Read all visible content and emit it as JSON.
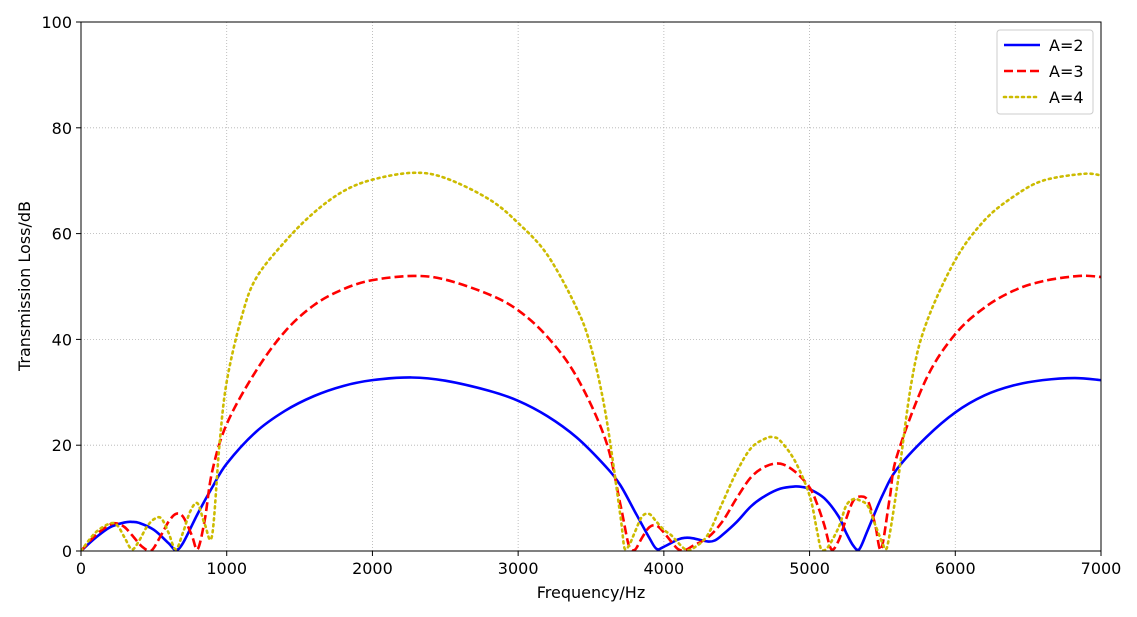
{
  "chart_data": {
    "type": "line",
    "title": "",
    "xlabel": "Frequency/Hz",
    "ylabel": "Transmission Loss/dB",
    "xlim": [
      0,
      7000
    ],
    "ylim": [
      0,
      100
    ],
    "xticks": [
      0,
      1000,
      2000,
      3000,
      4000,
      5000,
      6000,
      7000
    ],
    "yticks": [
      0,
      20,
      40,
      60,
      80,
      100
    ],
    "grid": true,
    "legend_position": "top-right",
    "series": [
      {
        "name": "A=2",
        "color": "#0000ff",
        "style": "solid",
        "x": [
          0,
          100,
          200,
          300,
          350,
          400,
          500,
          600,
          650,
          700,
          800,
          900,
          1000,
          1200,
          1400,
          1600,
          1800,
          2000,
          2270,
          2500,
          2800,
          3000,
          3200,
          3400,
          3600,
          3700,
          3800,
          3900,
          3950,
          4000,
          4100,
          4150,
          4200,
          4300,
          4350,
          4400,
          4500,
          4600,
          4700,
          4800,
          4900,
          4950,
          5000,
          5100,
          5200,
          5250,
          5300,
          5340,
          5400,
          5500,
          5600,
          5800,
          6000,
          6200,
          6400,
          6600,
          6820,
          7000
        ],
        "values": [
          0,
          2.5,
          4.5,
          5.4,
          5.5,
          5.3,
          4,
          1.5,
          0.2,
          1.5,
          7,
          12,
          16.5,
          22.5,
          26.5,
          29.3,
          31.2,
          32.3,
          32.8,
          32.2,
          30.3,
          28.4,
          25.5,
          21.5,
          16,
          12.5,
          7.5,
          2.5,
          0.4,
          0.8,
          2.2,
          2.5,
          2.4,
          1.8,
          2,
          3,
          5.5,
          8.5,
          10.5,
          11.8,
          12.2,
          12.1,
          11.7,
          10,
          6.5,
          3.5,
          1,
          0.3,
          4,
          10.5,
          15.5,
          21.5,
          26.2,
          29.4,
          31.3,
          32.3,
          32.7,
          32.3
        ]
      },
      {
        "name": "A=3",
        "color": "#ff0000",
        "style": "dashed",
        "x": [
          0,
          100,
          200,
          250,
          300,
          350,
          420,
          480,
          550,
          600,
          650,
          700,
          760,
          800,
          850,
          900,
          1000,
          1200,
          1400,
          1600,
          1800,
          2000,
          2280,
          2500,
          2800,
          3000,
          3200,
          3400,
          3600,
          3700,
          3760,
          3800,
          3850,
          3900,
          3950,
          4000,
          4050,
          4100,
          4150,
          4200,
          4300,
          4400,
          4500,
          4600,
          4700,
          4800,
          4900,
          5000,
          5050,
          5100,
          5150,
          5200,
          5250,
          5300,
          5350,
          5400,
          5450,
          5490,
          5550,
          5600,
          5800,
          6000,
          6200,
          6400,
          6600,
          6850,
          7000
        ],
        "values": [
          0,
          3,
          5,
          5.2,
          4.5,
          3,
          0.8,
          0,
          3,
          5.5,
          7,
          6.5,
          3,
          0.3,
          6,
          15,
          24,
          34,
          41.5,
          46.5,
          49.5,
          51.2,
          52,
          51.3,
          48.5,
          45.5,
          40.5,
          33,
          21,
          9,
          1,
          0.2,
          2.5,
          4.5,
          4.8,
          3.5,
          1.8,
          0.3,
          0.2,
          1,
          2.5,
          5.5,
          10,
          14,
          16,
          16.5,
          15,
          12,
          9,
          5,
          0.3,
          2,
          6,
          9.5,
          10.3,
          9.5,
          5,
          0.2,
          10,
          18,
          32.5,
          41,
          46,
          49.2,
          51,
          52,
          51.8
        ]
      },
      {
        "name": "A=4",
        "color": "#ccbb00",
        "style": "dotted",
        "x": [
          0,
          100,
          200,
          250,
          300,
          350,
          400,
          450,
          500,
          550,
          600,
          650,
          700,
          750,
          800,
          850,
          900,
          950,
          1000,
          1100,
          1200,
          1400,
          1600,
          1800,
          2000,
          2280,
          2500,
          2800,
          3000,
          3200,
          3400,
          3500,
          3600,
          3700,
          3730,
          3760,
          3800,
          3850,
          3900,
          3950,
          4000,
          4050,
          4100,
          4150,
          4200,
          4300,
          4400,
          4500,
          4600,
          4700,
          4750,
          4800,
          4900,
          5000,
          5050,
          5080,
          5120,
          5200,
          5250,
          5300,
          5350,
          5400,
          5450,
          5500,
          5530,
          5600,
          5700,
          5800,
          6000,
          6200,
          6400,
          6600,
          6880,
          7000
        ],
        "values": [
          0,
          3.5,
          5.2,
          4.8,
          2.5,
          0.3,
          2,
          4.5,
          6,
          6.2,
          3.5,
          0.3,
          3.5,
          7.5,
          9,
          5,
          3,
          20,
          32,
          44,
          51.5,
          58.5,
          64,
          68,
          70.2,
          71.5,
          70.5,
          66.5,
          62,
          56,
          46,
          38.5,
          26,
          7,
          0.5,
          1,
          3.5,
          6.5,
          7,
          5.5,
          4,
          3,
          1.5,
          0.3,
          0.5,
          3,
          9,
          15,
          19.5,
          21.3,
          21.5,
          20.8,
          17,
          10.5,
          4,
          0.3,
          0.5,
          4.5,
          8.5,
          9.8,
          9.5,
          8.5,
          5,
          1.5,
          0.5,
          12,
          32,
          43,
          55,
          62.5,
          67,
          70,
          71.3,
          71
        ]
      }
    ]
  }
}
